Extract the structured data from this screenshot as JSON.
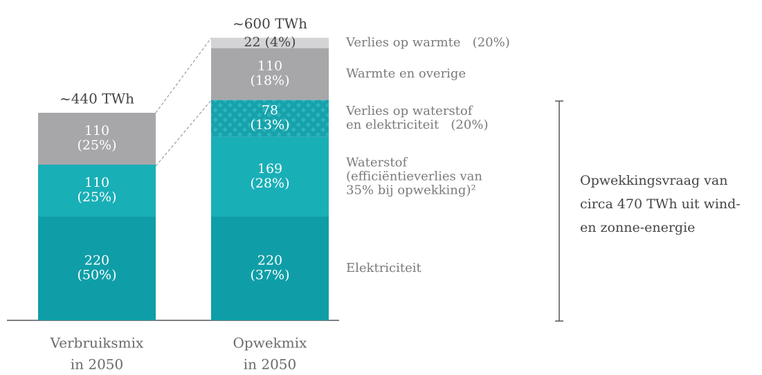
{
  "chart_data": {
    "type": "stacked_bar",
    "categories": [
      [
        "Verbruiksmix",
        "in 2050"
      ],
      [
        "Opwekmix",
        "in 2050"
      ]
    ],
    "totals": [
      "~440 TWh",
      "~600 TWh"
    ],
    "series": [
      {
        "name": [
          "Elektriciteit"
        ],
        "color": "#0f9ea7",
        "label_color": "#ffffff",
        "values": [
          220,
          220
        ],
        "value_labels": [
          [
            "220",
            "(50%)"
          ],
          [
            "220",
            "(37%)"
          ]
        ]
      },
      {
        "name": [
          "Waterstof",
          "(efficiëntieverlies van",
          "35% bij opwekking)²"
        ],
        "color": "#19afb7",
        "label_color": "#ffffff",
        "values": [
          110,
          169
        ],
        "value_labels": [
          [
            "110",
            "(25%)"
          ],
          [
            "169",
            "(28%)"
          ]
        ]
      },
      {
        "name": [
          "Verlies op waterstof",
          "en elektriciteit   (20%)"
        ],
        "color": "#17a2ab",
        "pattern": "hatch",
        "label_color": "#ffffff",
        "values": [
          null,
          78
        ],
        "value_labels": [
          null,
          [
            "78",
            "(13%)"
          ]
        ]
      },
      {
        "name": [
          "Warmte en overige"
        ],
        "color": "#a7a7aa",
        "label_color": "#ffffff",
        "values": [
          110,
          110
        ],
        "value_labels": [
          [
            "110",
            "(25%)"
          ],
          [
            "110",
            "(18%)"
          ]
        ]
      },
      {
        "name": [
          "Verlies op warmte   (20%)"
        ],
        "color": "#d4d4d6",
        "label_color": "#444444",
        "values": [
          null,
          22
        ],
        "value_labels": [
          null,
          [
            "22 (4%)"
          ]
        ]
      }
    ],
    "annotation": [
      "Opwekkingsvraag van",
      "circa 470 TWh uit wind-",
      "en zonne-energie"
    ]
  }
}
